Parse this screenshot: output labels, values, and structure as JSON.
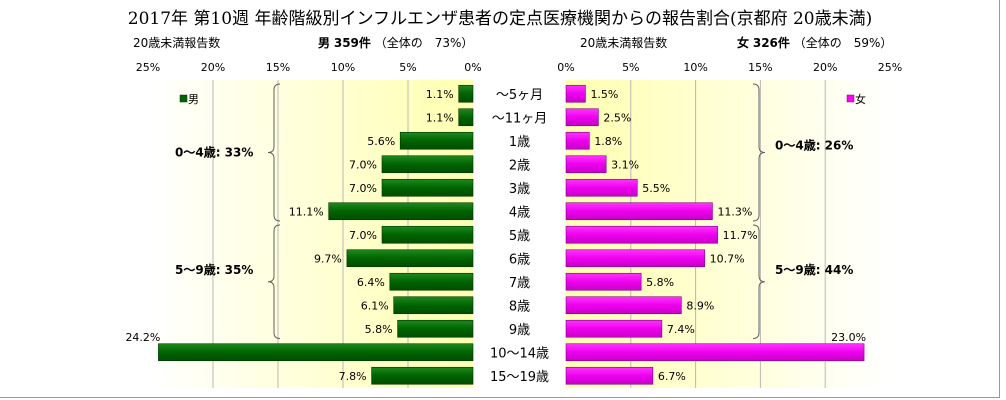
{
  "title": "2017年 第10週 年齢階級別インフルエンザ患者の定点医療機関からの報告割合(京都府 20歳未満)",
  "left_header": {
    "axis_label": "20歳未満報告数",
    "gender": "男",
    "count": "359件",
    "share": "（全体の　73%）"
  },
  "right_header": {
    "axis_label": "20歳未満報告数",
    "gender": "女",
    "count": "326件",
    "share": "（全体の　59%）"
  },
  "colors": {
    "male": "#006400",
    "female": "#ff00ff",
    "gradient_inner": "#ffffb0",
    "gradient_outer": "#ffffff"
  },
  "chart_data": {
    "type": "bar",
    "orientation": "horizontal-butterfly",
    "categories": [
      "～5ヶ月",
      "～11ヶ月",
      "1歳",
      "2歳",
      "3歳",
      "4歳",
      "5歳",
      "6歳",
      "7歳",
      "8歳",
      "9歳",
      "10～14歳",
      "15～19歳"
    ],
    "series": [
      {
        "name": "男",
        "values": [
          1.1,
          1.1,
          5.6,
          7.0,
          7.0,
          11.1,
          7.0,
          9.7,
          6.4,
          6.1,
          5.8,
          24.2,
          7.8
        ],
        "labels": [
          "1.1%",
          "1.1%",
          "5.6%",
          "7.0%",
          "7.0%",
          "11.1%",
          "7.0%",
          "9.7%",
          "6.4%",
          "6.1%",
          "5.8%",
          "24.2%",
          "7.8%"
        ]
      },
      {
        "name": "女",
        "values": [
          1.5,
          2.5,
          1.8,
          3.1,
          5.5,
          11.3,
          11.7,
          10.7,
          5.8,
          8.9,
          7.4,
          23.0,
          6.7
        ],
        "labels": [
          "1.5%",
          "2.5%",
          "1.8%",
          "3.1%",
          "5.5%",
          "11.3%",
          "11.7%",
          "10.7%",
          "5.8%",
          "8.9%",
          "7.4%",
          "23.0%",
          "6.7%"
        ]
      }
    ],
    "xlim": [
      0,
      25
    ],
    "left_ticks": [
      "25%",
      "20%",
      "15%",
      "10%",
      "5%",
      "0%"
    ],
    "right_ticks": [
      "0%",
      "5%",
      "10%",
      "15%",
      "20%",
      "25%"
    ],
    "legend": {
      "male": "男",
      "female": "女"
    },
    "annotations": {
      "male_0_4": "0～4歳: 33%",
      "male_5_9": "5～9歳: 35%",
      "female_0_4": "0～4歳: 26%",
      "female_5_9": "5～9歳: 44%"
    },
    "grid": true
  }
}
